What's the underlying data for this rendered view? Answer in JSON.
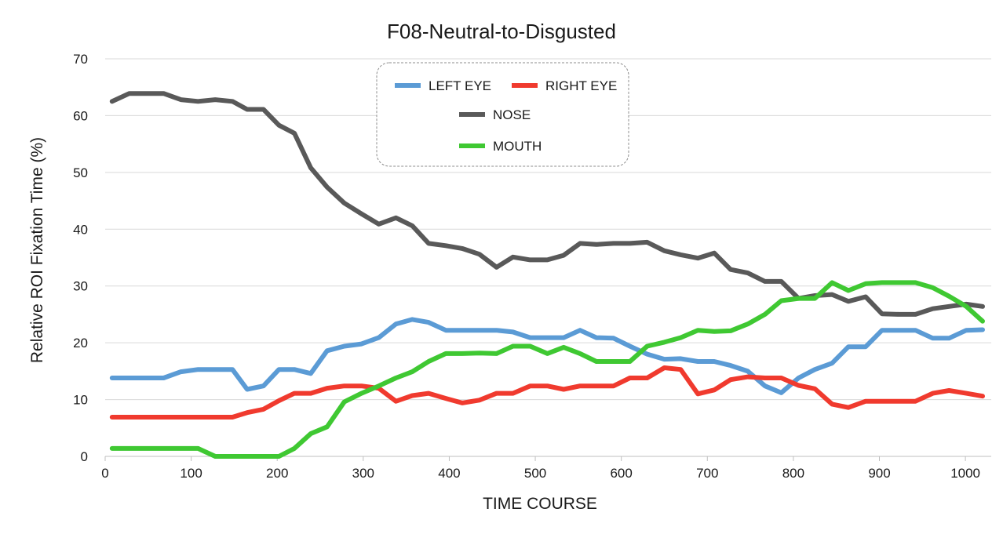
{
  "chart_data": {
    "type": "line",
    "title": "F08-Neutral-to-Disgusted",
    "xlabel": "TIME  COURSE",
    "ylabel": "Relative  ROI  Fixation  Time  (%)",
    "xlim": [
      0,
      1030
    ],
    "ylim": [
      0,
      70
    ],
    "xticks": [
      0,
      100,
      200,
      300,
      400,
      500,
      600,
      700,
      800,
      900,
      1000
    ],
    "yticks": [
      0,
      10,
      20,
      30,
      40,
      50,
      60,
      70
    ],
    "grid": "horizontal",
    "legend_position": "top-center",
    "x": [
      8,
      28,
      48,
      68,
      88,
      108,
      128,
      148,
      165,
      184,
      202,
      220,
      239,
      258,
      278,
      298,
      318,
      338,
      357,
      376,
      396,
      415,
      435,
      455,
      474,
      494,
      514,
      533,
      552,
      571,
      591,
      610,
      630,
      650,
      669,
      689,
      708,
      727,
      747,
      767,
      786,
      806,
      825,
      845,
      864,
      884,
      903,
      923,
      942,
      962,
      981,
      1001,
      1020
    ],
    "series": [
      {
        "name": "LEFT EYE",
        "color": "#5b9bd5",
        "values": [
          13.8,
          13.8,
          13.8,
          13.8,
          14.9,
          15.3,
          15.3,
          15.3,
          11.8,
          12.4,
          15.3,
          15.3,
          14.6,
          18.6,
          19.4,
          19.8,
          20.9,
          23.3,
          24.1,
          23.6,
          22.2,
          22.2,
          22.2,
          22.2,
          21.9,
          20.9,
          20.9,
          20.9,
          22.2,
          20.9,
          20.8,
          19.4,
          18.0,
          17.1,
          17.2,
          16.7,
          16.7,
          16.0,
          15.0,
          12.4,
          11.2,
          13.8,
          15.3,
          16.4,
          19.3,
          19.3,
          22.2,
          22.2,
          22.2,
          20.8,
          20.8,
          22.2,
          22.3
        ]
      },
      {
        "name": "RIGHT EYE",
        "color": "#f03a2e",
        "values": [
          6.9,
          6.9,
          6.9,
          6.9,
          6.9,
          6.9,
          6.9,
          6.9,
          7.7,
          8.3,
          9.8,
          11.1,
          11.1,
          12.0,
          12.4,
          12.4,
          12.0,
          9.7,
          10.7,
          11.1,
          10.2,
          9.4,
          9.9,
          11.1,
          11.1,
          12.4,
          12.4,
          11.8,
          12.4,
          12.4,
          12.4,
          13.8,
          13.8,
          15.6,
          15.3,
          11.0,
          11.7,
          13.5,
          14.0,
          13.8,
          13.8,
          12.5,
          11.9,
          9.2,
          8.6,
          9.7,
          9.7,
          9.7,
          9.7,
          11.1,
          11.6,
          11.1,
          10.6
        ]
      },
      {
        "name": "NOSE",
        "color": "#595959",
        "values": [
          62.5,
          63.9,
          63.9,
          63.9,
          62.8,
          62.5,
          62.8,
          62.5,
          61.1,
          61.1,
          58.3,
          56.9,
          50.8,
          47.4,
          44.6,
          42.7,
          40.9,
          42.0,
          40.6,
          37.5,
          37.1,
          36.6,
          35.6,
          33.3,
          35.1,
          34.6,
          34.6,
          35.4,
          37.5,
          37.3,
          37.5,
          37.5,
          37.7,
          36.2,
          35.5,
          34.9,
          35.8,
          32.9,
          32.3,
          30.8,
          30.8,
          27.8,
          28.3,
          28.5,
          27.3,
          28.1,
          25.1,
          25.0,
          25.0,
          26.0,
          26.4,
          26.8,
          26.4
        ]
      },
      {
        "name": "MOUTH",
        "color": "#3fc832",
        "values": [
          1.4,
          1.4,
          1.4,
          1.4,
          1.4,
          1.4,
          0.0,
          0.0,
          0.0,
          0.0,
          0.0,
          1.4,
          4.0,
          5.2,
          9.6,
          11.1,
          12.4,
          13.8,
          14.9,
          16.7,
          18.1,
          18.1,
          18.2,
          18.1,
          19.4,
          19.4,
          18.1,
          19.2,
          18.1,
          16.7,
          16.7,
          16.7,
          19.4,
          20.1,
          20.9,
          22.2,
          22.0,
          22.1,
          23.3,
          25.0,
          27.4,
          27.8,
          27.8,
          30.6,
          29.2,
          30.4,
          30.6,
          30.6,
          30.6,
          29.7,
          28.2,
          26.4,
          23.8
        ]
      }
    ]
  }
}
